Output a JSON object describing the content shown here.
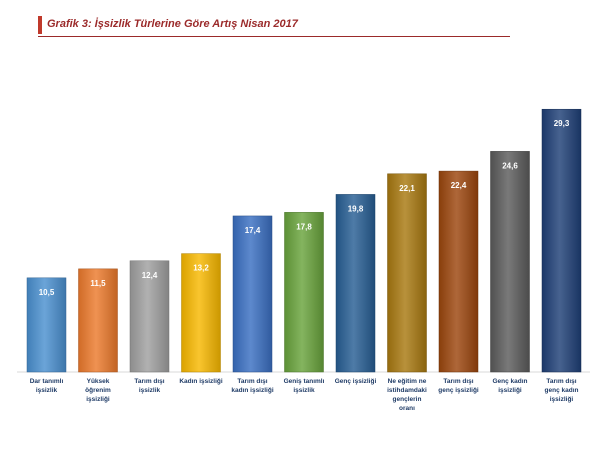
{
  "chart_data": {
    "type": "bar",
    "title": "Grafik 3: İşsizlik Türlerine Göre Artış Nisan 2017",
    "xlabel": "",
    "ylabel": "",
    "ylim": [
      0,
      32
    ],
    "grid": false,
    "legend": "none",
    "categories": [
      [
        "Dar tanımlı",
        "işsizlik"
      ],
      [
        "Yüksek",
        "öğrenim",
        "işsizliği"
      ],
      [
        "Tarım dışı",
        "işsizlik"
      ],
      [
        "Kadın işsizliği"
      ],
      [
        "Tarım dışı",
        "kadın işsizliği"
      ],
      [
        "Geniş tanımlı",
        "işsizlik"
      ],
      [
        "Genç işsizliği"
      ],
      [
        "Ne eğitim ne",
        "istihdamdaki",
        "gençlerin",
        "oranı"
      ],
      [
        "Tarım dışı",
        "genç işsizliği"
      ],
      [
        "Genç kadın",
        "işsizliği"
      ],
      [
        "Tarım dışı",
        "genç kadın",
        "işsizliği"
      ]
    ],
    "values": [
      10.5,
      11.5,
      12.4,
      13.2,
      17.4,
      17.8,
      19.8,
      22.1,
      22.4,
      24.6,
      29.3
    ],
    "value_labels": [
      "10,5",
      "11,5",
      "12,4",
      "13,2",
      "17,4",
      "17,8",
      "19,8",
      "22,1",
      "22,4",
      "24,6",
      "29,3"
    ],
    "colors": [
      "#4a90d0",
      "#ec7a2c",
      "#a0a0a0",
      "#f8b800",
      "#3a6fc2",
      "#69a43c",
      "#275e94",
      "#a87910",
      "#9c460d",
      "#5b5b5b",
      "#1f3f77"
    ]
  }
}
